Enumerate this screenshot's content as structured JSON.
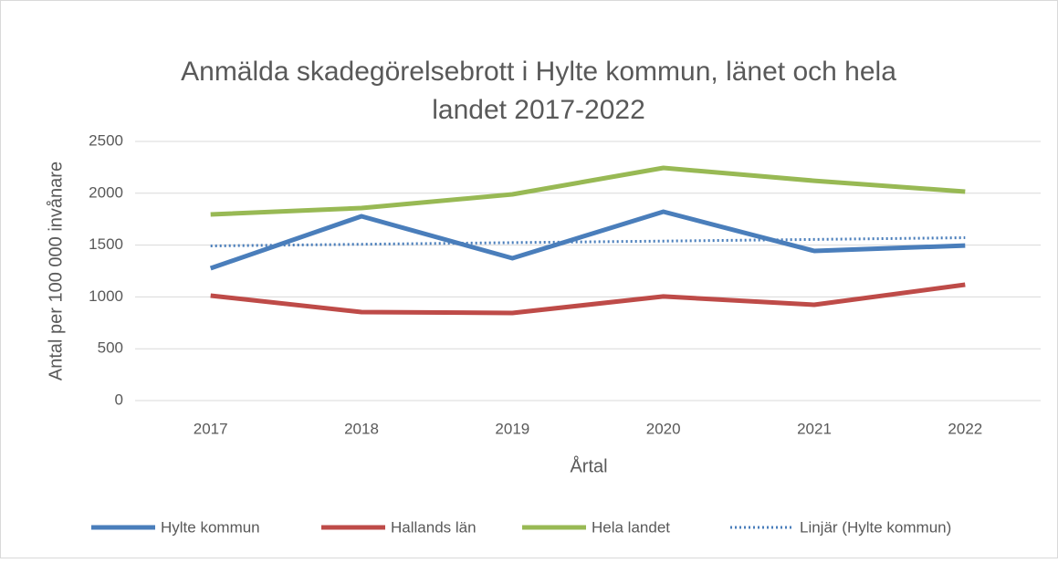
{
  "chart_data": {
    "type": "line",
    "title": "Anmälda skadegörelsebrott i Hylte kommun, länet och hela landet 2017-2022",
    "x_label": "Årtal",
    "y_label": "Antal per 100 000 invånare",
    "categories": [
      "2017",
      "2018",
      "2019",
      "2020",
      "2021",
      "2022"
    ],
    "series": [
      {
        "name": "Hylte kommun",
        "color": "#4a7ebb",
        "values": [
          1276,
          1778,
          1373,
          1822,
          1444,
          1496
        ]
      },
      {
        "name": "Hallands län",
        "color": "#be4b48",
        "values": [
          1012,
          854,
          845,
          1004,
          924,
          1118
        ]
      },
      {
        "name": "Hela landet",
        "color": "#98b954",
        "values": [
          1796,
          1857,
          1989,
          2245,
          2121,
          2016
        ]
      },
      {
        "name": "Linjär (Hylte kommun)",
        "color": "#4a7ebb",
        "dotted": true,
        "values": [
          1492,
          1508,
          1524,
          1539,
          1555,
          1571
        ]
      }
    ],
    "ylim": [
      0,
      2500
    ],
    "yticks": [
      0,
      500,
      1000,
      1500,
      2000,
      2500
    ],
    "grid": true,
    "legend": "bottom"
  }
}
